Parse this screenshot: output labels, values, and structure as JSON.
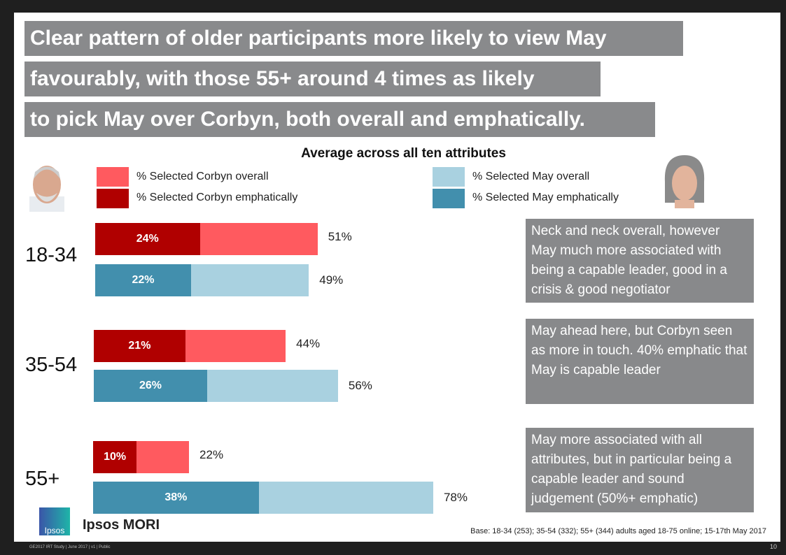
{
  "title_lines": [
    "Clear pattern of older participants more likely to view May",
    "favourably, with those 55+ around 4 times as likely",
    "to pick May over Corbyn, both overall and emphatically."
  ],
  "chart_data": {
    "type": "bar",
    "orientation": "horizontal",
    "title": "Average across all ten attributes",
    "categories": [
      "18-34",
      "35-54",
      "55+"
    ],
    "series": [
      {
        "name": "% Selected Corbyn overall",
        "values": [
          51,
          44,
          22
        ],
        "color": "#ff5a5f"
      },
      {
        "name": "% Selected Corbyn emphatically",
        "values": [
          24,
          21,
          10
        ],
        "color": "#b00000"
      },
      {
        "name": "% Selected May overall",
        "values": [
          49,
          56,
          78
        ],
        "color": "#a9d1e0"
      },
      {
        "name": "% Selected May emphatically",
        "values": [
          22,
          26,
          38
        ],
        "color": "#428fad"
      }
    ],
    "labels": {
      "corbyn_overall": [
        "51%",
        "44%",
        "22%"
      ],
      "corbyn_emph": [
        "24%",
        "21%",
        "10%"
      ],
      "may_overall": [
        "49%",
        "56%",
        "78%"
      ],
      "may_emph": [
        "22%",
        "26%",
        "38%"
      ]
    },
    "legend_placement": "top"
  },
  "notes": [
    "Neck and neck overall, however May much more associated with being a capable leader, good in a crisis & good negotiator",
    "May ahead here, but Corbyn seen as more in touch.  40% emphatic that May is capable leader",
    "May more associated with all attributes, but in particular being a capable leader and sound judgement (50%+ emphatic)"
  ],
  "logo": {
    "badge": "Ipsos",
    "name": "Ipsos MORI"
  },
  "base_note": "Base: 18-34  (253); 35-54  (332); 55+  (344) adults aged 18-75  online; 15-17th May 2017",
  "footer": "GE2017 IRT Study | June 2017 | v1 | Public",
  "page_number": "10"
}
